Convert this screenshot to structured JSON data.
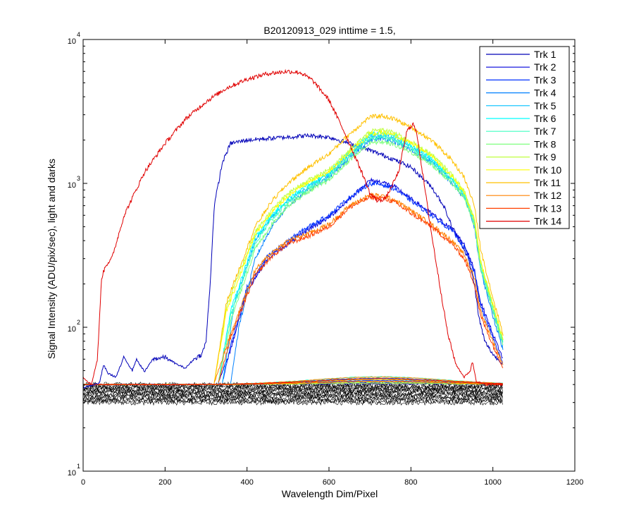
{
  "figure": {
    "title": "B20120913_029 inttime = 1.5,",
    "xlabel": "Wavelength Dim/Pixel",
    "ylabel": "Signal Intensity (ADU/pix/sec), light and darks"
  },
  "chart_data": {
    "type": "line",
    "title": "B20120913_029 inttime = 1.5,",
    "xlabel": "Wavelength Dim/Pixel",
    "ylabel": "Signal Intensity (ADU/pix/sec), light and darks",
    "xlim": [
      0,
      1200
    ],
    "ylim": [
      10,
      10000
    ],
    "yscale": "log",
    "x_ticks": [
      0,
      200,
      400,
      600,
      800,
      1000,
      1200
    ],
    "y_ticks": [
      {
        "base": "10",
        "exp": "1",
        "value": 10
      },
      {
        "base": "10",
        "exp": "2",
        "value": 100
      },
      {
        "base": "10",
        "exp": "3",
        "value": 1000
      },
      {
        "base": "10",
        "exp": "4",
        "value": 10000
      }
    ],
    "grid": false,
    "legend_position": "top-right",
    "series": [
      {
        "name": "Trk 1",
        "color": "#0000b8",
        "x": [
          0,
          40,
          50,
          60,
          80,
          100,
          120,
          130,
          150,
          170,
          200,
          230,
          250,
          270,
          290,
          300,
          310,
          320,
          340,
          360,
          400,
          450,
          500,
          550,
          600,
          650,
          700,
          750,
          800,
          850,
          880,
          900,
          920,
          940,
          955,
          965,
          980,
          1000,
          1025
        ],
        "y": [
          38,
          41,
          55,
          48,
          45,
          62,
          50,
          60,
          49,
          60,
          62,
          55,
          52,
          60,
          65,
          80,
          200,
          700,
          1400,
          1900,
          2000,
          2050,
          2100,
          2150,
          2100,
          1900,
          1700,
          1500,
          1300,
          950,
          700,
          500,
          400,
          300,
          200,
          120,
          80,
          65,
          55
        ]
      },
      {
        "name": "Trk 2",
        "color": "#0000dc",
        "x": [
          330,
          360,
          400,
          450,
          500,
          550,
          600,
          650,
          700,
          730,
          760,
          800,
          850,
          900,
          930,
          955,
          970,
          1000,
          1025
        ],
        "y": [
          41,
          70,
          180,
          300,
          380,
          480,
          580,
          780,
          1050,
          1020,
          950,
          780,
          620,
          480,
          380,
          250,
          150,
          90,
          60
        ]
      },
      {
        "name": "Trk 3",
        "color": "#0030ff",
        "x": [
          340,
          360,
          400,
          450,
          500,
          550,
          600,
          650,
          700,
          730,
          760,
          800,
          850,
          900,
          930,
          955,
          970,
          1000,
          1025
        ],
        "y": [
          41,
          75,
          190,
          310,
          400,
          500,
          600,
          800,
          1000,
          980,
          920,
          760,
          600,
          470,
          360,
          240,
          140,
          85,
          55
        ]
      },
      {
        "name": "Trk 4",
        "color": "#0080ff",
        "x": [
          360,
          380,
          420,
          460,
          500,
          550,
          600,
          650,
          700,
          730,
          760,
          800,
          850,
          900,
          930,
          955,
          970,
          1000,
          1025
        ],
        "y": [
          41,
          100,
          300,
          500,
          700,
          900,
          1100,
          1500,
          2000,
          2050,
          1950,
          1700,
          1400,
          1000,
          800,
          500,
          250,
          120,
          70
        ]
      },
      {
        "name": "Trk 5",
        "color": "#00c0ff",
        "x": [
          340,
          370,
          420,
          460,
          500,
          550,
          600,
          650,
          700,
          730,
          760,
          800,
          850,
          900,
          930,
          955,
          970,
          1000,
          1025
        ],
        "y": [
          41,
          150,
          400,
          580,
          760,
          950,
          1150,
          1600,
          2100,
          2150,
          2050,
          1800,
          1450,
          1050,
          820,
          520,
          260,
          130,
          75
        ]
      },
      {
        "name": "Trk 6",
        "color": "#00ffff",
        "x": [
          330,
          360,
          420,
          460,
          500,
          550,
          600,
          650,
          700,
          730,
          760,
          800,
          850,
          900,
          930,
          955,
          970,
          1000,
          1025
        ],
        "y": [
          41,
          130,
          420,
          600,
          780,
          980,
          1180,
          1650,
          2200,
          2250,
          2150,
          1850,
          1500,
          1100,
          850,
          550,
          280,
          140,
          80
        ]
      },
      {
        "name": "Trk 7",
        "color": "#40ffc0",
        "x": [
          330,
          360,
          420,
          460,
          500,
          550,
          600,
          650,
          700,
          730,
          760,
          800,
          850,
          900,
          930,
          955,
          970,
          1000,
          1025
        ],
        "y": [
          41,
          120,
          380,
          560,
          740,
          920,
          1100,
          1550,
          2050,
          2100,
          2000,
          1750,
          1400,
          1050,
          820,
          530,
          270,
          135,
          78
        ]
      },
      {
        "name": "Trk 8",
        "color": "#80ff80",
        "x": [
          330,
          360,
          420,
          460,
          500,
          550,
          600,
          650,
          700,
          730,
          760,
          800,
          850,
          900,
          930,
          955,
          970,
          1000,
          1025
        ],
        "y": [
          41,
          110,
          350,
          520,
          700,
          880,
          1050,
          1450,
          1900,
          1950,
          1850,
          1650,
          1350,
          1000,
          790,
          510,
          260,
          130,
          75
        ]
      },
      {
        "name": "Trk 9",
        "color": "#c0ff40",
        "x": [
          320,
          350,
          420,
          460,
          500,
          550,
          600,
          650,
          700,
          730,
          760,
          800,
          850,
          900,
          930,
          955,
          970,
          1000,
          1025
        ],
        "y": [
          41,
          140,
          460,
          650,
          850,
          1050,
          1250,
          1700,
          2300,
          2350,
          2250,
          1950,
          1600,
          1150,
          880,
          570,
          290,
          145,
          82
        ]
      },
      {
        "name": "Trk 10",
        "color": "#ffff00",
        "x": [
          320,
          350,
          420,
          460,
          500,
          550,
          600,
          650,
          700,
          730,
          760,
          800,
          850,
          900,
          930,
          955,
          970,
          1000,
          1025
        ],
        "y": [
          41,
          130,
          440,
          630,
          820,
          1020,
          1200,
          1650,
          2200,
          2250,
          2150,
          1900,
          1550,
          1120,
          860,
          560,
          285,
          142,
          80
        ]
      },
      {
        "name": "Trk 11",
        "color": "#ffc000",
        "x": [
          320,
          350,
          420,
          460,
          500,
          550,
          600,
          650,
          700,
          730,
          760,
          800,
          850,
          900,
          930,
          955,
          970,
          1000,
          1025
        ],
        "y": [
          41,
          150,
          500,
          750,
          1000,
          1300,
          1600,
          2200,
          2900,
          2950,
          2800,
          2450,
          2000,
          1450,
          1100,
          700,
          350,
          160,
          90
        ]
      },
      {
        "name": "Trk 12",
        "color": "#ff8000",
        "x": [
          320,
          360,
          420,
          460,
          500,
          550,
          600,
          650,
          700,
          730,
          760,
          800,
          850,
          900,
          930,
          955,
          970,
          1000,
          1025
        ],
        "y": [
          41,
          90,
          250,
          330,
          400,
          450,
          520,
          700,
          830,
          820,
          770,
          650,
          520,
          400,
          320,
          220,
          130,
          80,
          55
        ]
      },
      {
        "name": "Trk 13",
        "color": "#ff4000",
        "x": [
          330,
          360,
          420,
          460,
          500,
          550,
          600,
          650,
          700,
          730,
          760,
          800,
          850,
          900,
          930,
          955,
          970,
          1000,
          1025
        ],
        "y": [
          41,
          85,
          230,
          310,
          380,
          430,
          500,
          680,
          800,
          790,
          740,
          620,
          500,
          380,
          300,
          200,
          120,
          75,
          52
        ]
      },
      {
        "name": "Trk 14",
        "color": "#e00000",
        "x": [
          0,
          20,
          35,
          45,
          55,
          70,
          100,
          150,
          200,
          250,
          300,
          350,
          400,
          450,
          500,
          530,
          560,
          600,
          640,
          680,
          700,
          720,
          740,
          770,
          790,
          805,
          815,
          830,
          850,
          870,
          890,
          910,
          930,
          945,
          950,
          960,
          980,
          1000,
          1025
        ],
        "y": [
          45,
          40,
          60,
          220,
          270,
          300,
          600,
          1200,
          1900,
          2800,
          3700,
          4600,
          5300,
          5800,
          6000,
          5900,
          5200,
          3800,
          2200,
          1200,
          850,
          750,
          800,
          1200,
          2300,
          2600,
          2200,
          1100,
          450,
          200,
          90,
          55,
          45,
          50,
          58,
          42,
          40,
          40,
          40
        ]
      }
    ],
    "legend": [
      "Trk 1",
      "Trk 2",
      "Trk 3",
      "Trk 4",
      "Trk 5",
      "Trk 6",
      "Trk 7",
      "Trk 8",
      "Trk 9",
      "Trk 10",
      "Trk 11",
      "Trk 12",
      "Trk 13",
      "Trk 14"
    ],
    "dark_traces": {
      "color": "#000000",
      "x_range": [
        0,
        1025
      ],
      "y_range": [
        30,
        40
      ]
    },
    "baseline_traces": {
      "x_range": [
        0,
        1025
      ],
      "y_range": [
        40,
        46
      ]
    }
  }
}
